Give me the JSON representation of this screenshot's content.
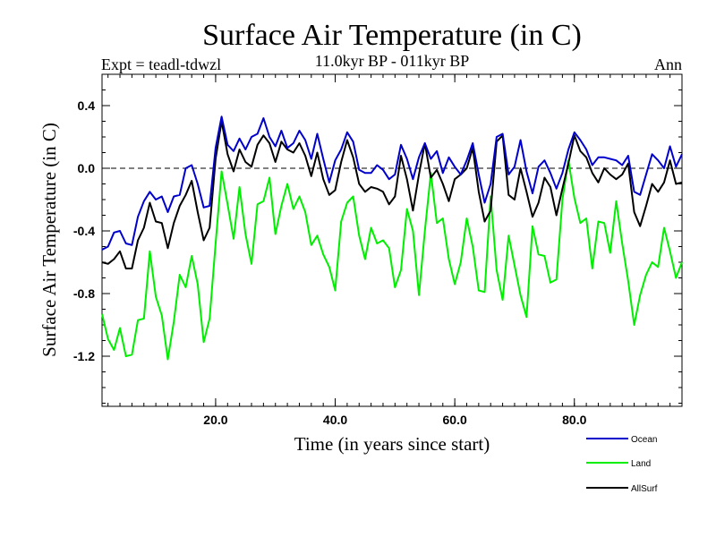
{
  "chart_data": {
    "type": "line",
    "title": "Surface Air Temperature (in C)",
    "subtitle": "11.0kyr BP - 011kyr BP",
    "experiment": "Expt = teadl-tdwzl",
    "season": "Ann",
    "xlabel": "Time (in years since start)",
    "ylabel": "Surface Air Temperature (in C)",
    "xlim": [
      1,
      98
    ],
    "ylim": [
      -1.52,
      0.6
    ],
    "x_ticks": [
      20,
      40,
      60,
      80
    ],
    "x_tick_labels": [
      "20.0",
      "40.0",
      "60.0",
      "80.0"
    ],
    "y_ticks": [
      0.4,
      0.0,
      -0.4,
      -0.8,
      -1.2
    ],
    "y_tick_labels": [
      "0.4",
      "0.0",
      "-0.4",
      "-0.8",
      "-1.2"
    ],
    "reference_line": 0.0,
    "x": [
      1,
      2,
      3,
      4,
      5,
      6,
      7,
      8,
      9,
      10,
      11,
      12,
      13,
      14,
      15,
      16,
      17,
      18,
      19,
      20,
      21,
      22,
      23,
      24,
      25,
      26,
      27,
      28,
      29,
      30,
      31,
      32,
      33,
      34,
      35,
      36,
      37,
      38,
      39,
      40,
      41,
      42,
      43,
      44,
      45,
      46,
      47,
      48,
      49,
      50,
      51,
      52,
      53,
      54,
      55,
      56,
      57,
      58,
      59,
      60,
      61,
      62,
      63,
      64,
      65,
      66,
      67,
      68,
      69,
      70,
      71,
      72,
      73,
      74,
      75,
      76,
      77,
      78,
      79,
      80,
      81,
      82,
      83,
      84,
      85,
      86,
      87,
      88,
      89,
      90,
      91,
      92,
      93,
      94,
      95,
      96,
      97,
      98
    ],
    "series": [
      {
        "name": "Ocean",
        "color": "#0000cc",
        "values": [
          -0.52,
          -0.5,
          -0.41,
          -0.4,
          -0.48,
          -0.49,
          -0.31,
          -0.21,
          -0.15,
          -0.2,
          -0.18,
          -0.28,
          -0.18,
          -0.17,
          0.0,
          0.02,
          -0.1,
          -0.25,
          -0.24,
          0.13,
          0.33,
          0.15,
          0.11,
          0.19,
          0.12,
          0.2,
          0.22,
          0.32,
          0.2,
          0.14,
          0.24,
          0.13,
          0.16,
          0.24,
          0.18,
          0.06,
          0.22,
          0.06,
          -0.09,
          0.05,
          0.12,
          0.23,
          0.17,
          -0.01,
          -0.03,
          -0.03,
          0.02,
          -0.01,
          -0.07,
          -0.04,
          0.15,
          0.06,
          -0.07,
          0.07,
          0.16,
          0.06,
          0.11,
          -0.03,
          0.07,
          0.01,
          -0.04,
          0.05,
          0.16,
          -0.04,
          -0.22,
          -0.1,
          0.2,
          0.22,
          -0.04,
          0.01,
          0.18,
          -0.02,
          -0.16,
          0.01,
          0.05,
          -0.03,
          -0.13,
          -0.03,
          0.12,
          0.23,
          0.18,
          0.12,
          0.02,
          0.07,
          0.07,
          0.06,
          0.05,
          0.02,
          0.08,
          -0.15,
          -0.17,
          -0.04,
          0.09,
          0.05,
          0.0,
          0.14,
          0.01,
          0.09
        ]
      },
      {
        "name": "Land",
        "color": "#00ee00",
        "values": [
          -0.93,
          -1.09,
          -1.16,
          -1.02,
          -1.2,
          -1.19,
          -0.97,
          -0.96,
          -0.53,
          -0.82,
          -0.94,
          -1.22,
          -0.98,
          -0.68,
          -0.76,
          -0.56,
          -0.74,
          -1.11,
          -0.96,
          -0.48,
          -0.02,
          -0.23,
          -0.45,
          -0.12,
          -0.42,
          -0.61,
          -0.23,
          -0.21,
          -0.06,
          -0.42,
          -0.24,
          -0.1,
          -0.26,
          -0.18,
          -0.28,
          -0.49,
          -0.43,
          -0.55,
          -0.63,
          -0.78,
          -0.34,
          -0.22,
          -0.18,
          -0.43,
          -0.58,
          -0.38,
          -0.48,
          -0.46,
          -0.51,
          -0.76,
          -0.65,
          -0.26,
          -0.4,
          -0.81,
          -0.4,
          -0.03,
          -0.35,
          -0.32,
          -0.58,
          -0.74,
          -0.6,
          -0.32,
          -0.5,
          -0.78,
          -0.79,
          -0.18,
          -0.65,
          -0.84,
          -0.43,
          -0.62,
          -0.81,
          -0.95,
          -0.37,
          -0.55,
          -0.56,
          -0.73,
          -0.71,
          -0.2,
          0.05,
          -0.19,
          -0.35,
          -0.32,
          -0.64,
          -0.34,
          -0.35,
          -0.54,
          -0.21,
          -0.48,
          -0.72,
          -1.0,
          -0.81,
          -0.68,
          -0.6,
          -0.63,
          -0.38,
          -0.53,
          -0.7,
          -0.6
        ]
      },
      {
        "name": "AllSurf",
        "color": "#000000",
        "values": [
          -0.6,
          -0.61,
          -0.58,
          -0.53,
          -0.64,
          -0.64,
          -0.46,
          -0.38,
          -0.22,
          -0.34,
          -0.35,
          -0.51,
          -0.35,
          -0.24,
          -0.17,
          -0.08,
          -0.28,
          -0.46,
          -0.38,
          0.06,
          0.3,
          0.09,
          -0.02,
          0.12,
          0.04,
          0.01,
          0.15,
          0.21,
          0.16,
          0.04,
          0.17,
          0.12,
          0.1,
          0.16,
          0.08,
          -0.05,
          0.1,
          -0.07,
          -0.17,
          -0.14,
          0.04,
          0.18,
          0.07,
          -0.1,
          -0.15,
          -0.12,
          -0.13,
          -0.15,
          -0.23,
          -0.18,
          0.08,
          -0.07,
          -0.27,
          -0.04,
          0.16,
          -0.06,
          -0.01,
          -0.1,
          -0.21,
          -0.07,
          -0.04,
          0.0,
          0.13,
          -0.15,
          -0.34,
          -0.27,
          0.17,
          0.21,
          -0.17,
          -0.2,
          0.0,
          -0.15,
          -0.31,
          -0.22,
          -0.06,
          -0.12,
          -0.3,
          -0.13,
          0.03,
          0.21,
          0.11,
          0.07,
          -0.03,
          -0.09,
          0.0,
          -0.04,
          -0.07,
          -0.04,
          0.03,
          -0.28,
          -0.37,
          -0.24,
          -0.1,
          -0.15,
          -0.09,
          0.05,
          -0.1,
          -0.09
        ]
      }
    ]
  }
}
